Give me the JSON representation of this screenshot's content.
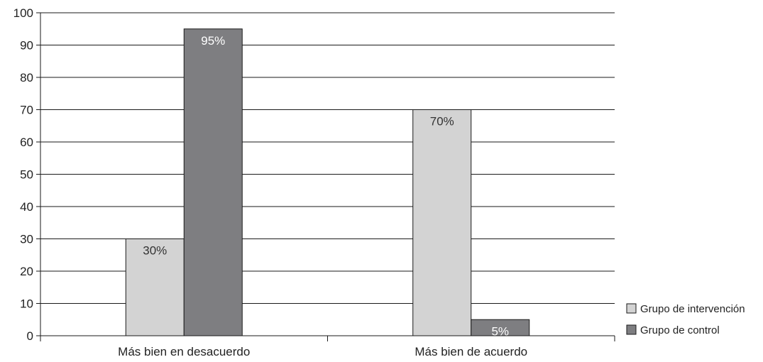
{
  "chart_data": {
    "type": "bar",
    "title": "",
    "xlabel": "",
    "ylabel": "",
    "ylim": [
      0,
      100
    ],
    "yticks": [
      "0",
      "10",
      "20",
      "30",
      "40",
      "50",
      "60",
      "70",
      "80",
      "90",
      "100"
    ],
    "categories": [
      "Más bien en desacuerdo",
      "Más bien de acuerdo"
    ],
    "series": [
      {
        "name": "Grupo de intervención",
        "values": [
          30,
          70
        ],
        "labels": [
          "30%",
          "70%"
        ],
        "color": "#d3d3d3",
        "label_color": "#333333"
      },
      {
        "name": "Grupo de control",
        "values": [
          95,
          5
        ],
        "labels": [
          "95%",
          "5%"
        ],
        "color": "#7e7e81",
        "label_color": "#ffffff"
      }
    ],
    "grid": true,
    "legend_position": "bottom-right"
  }
}
